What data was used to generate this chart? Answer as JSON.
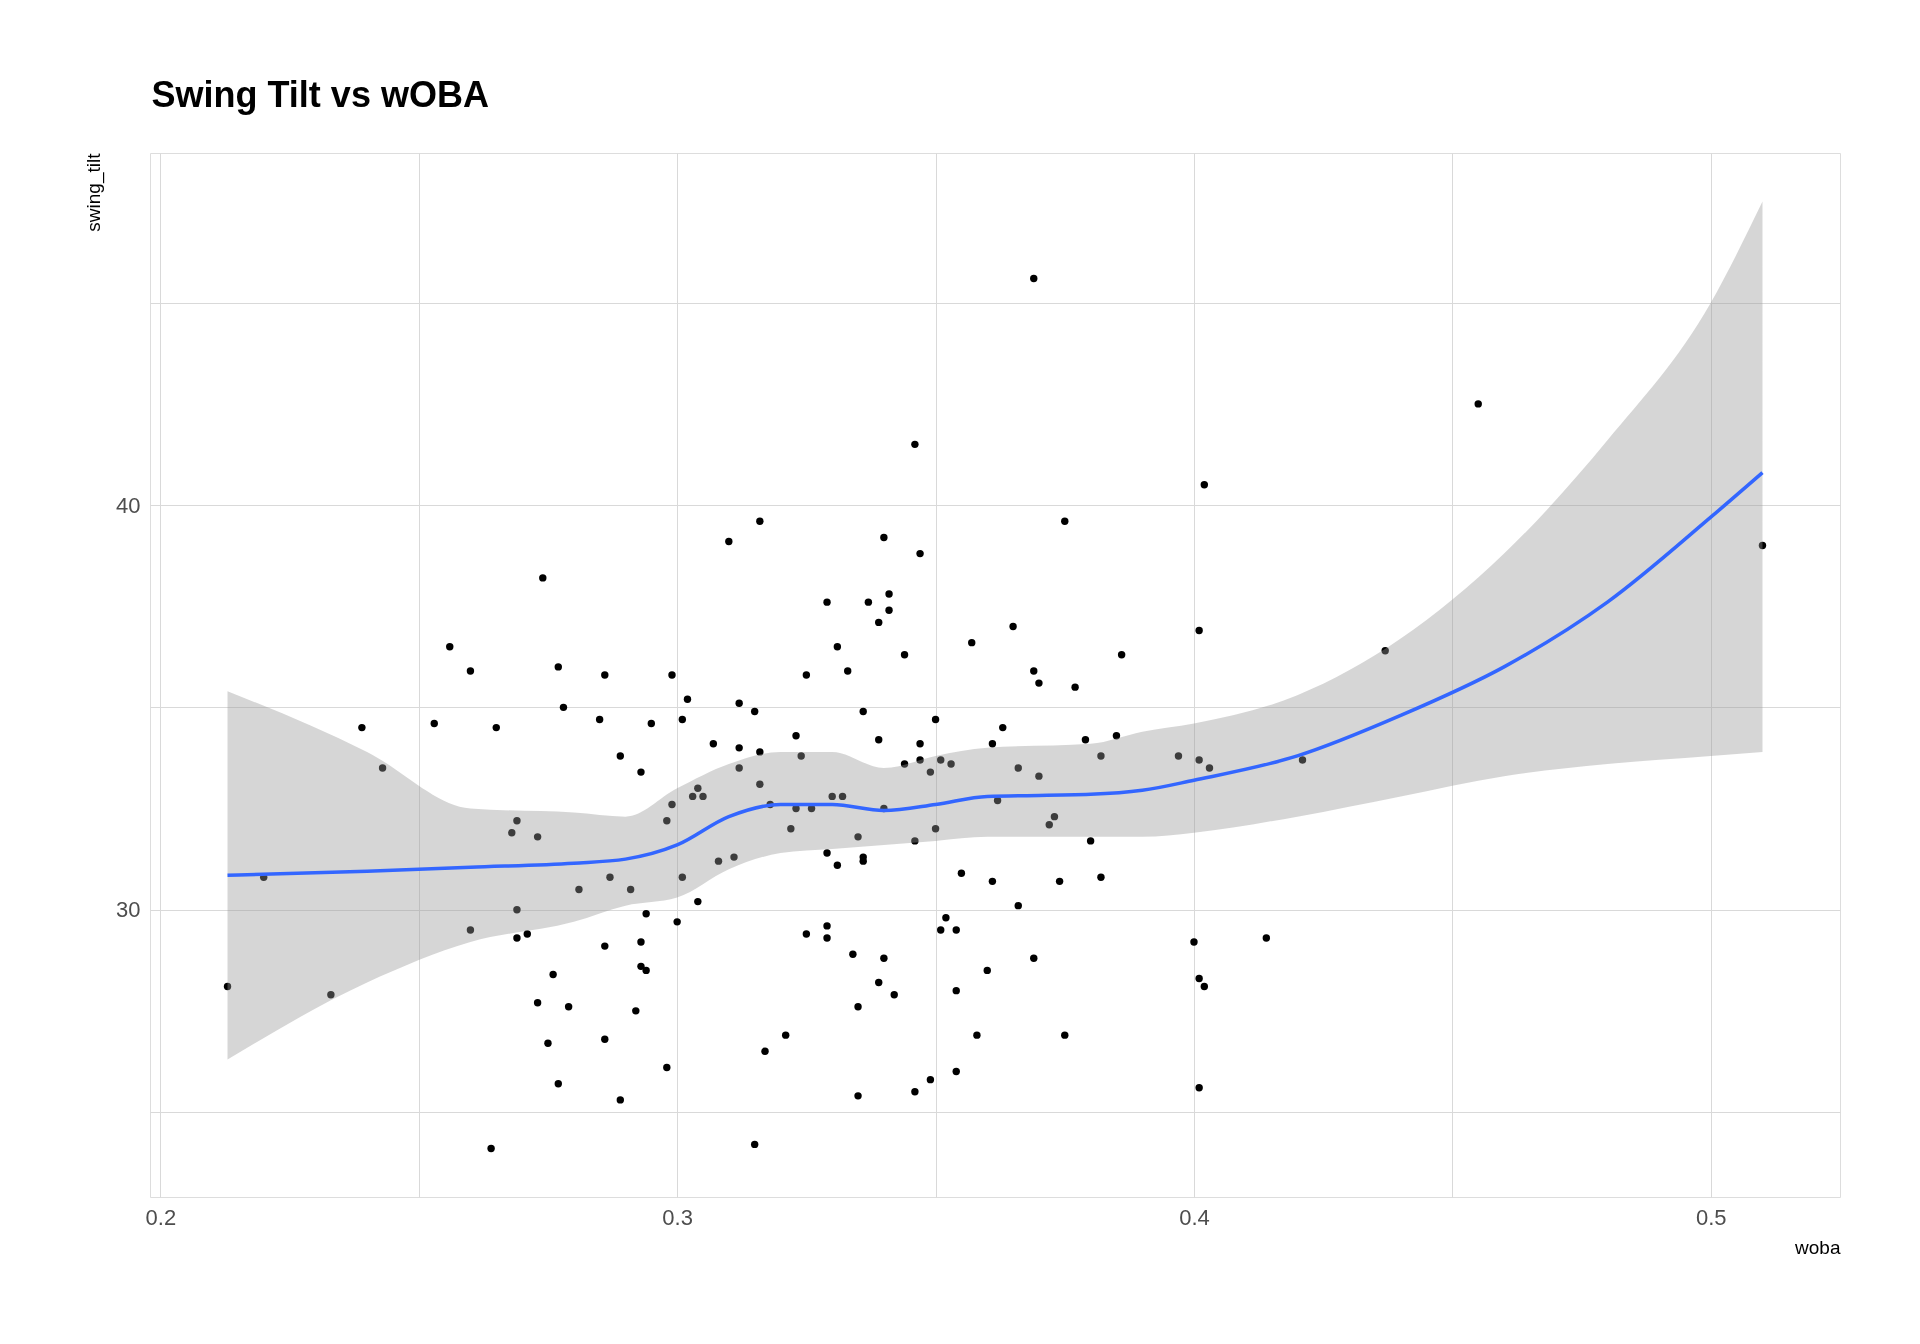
{
  "chart_data": {
    "type": "scatter",
    "title": "Swing Tilt vs wOBA",
    "xlabel": "woba",
    "ylabel": "swing_tilt",
    "xlim": [
      0.198,
      0.525
    ],
    "ylim": [
      22.9,
      48.7
    ],
    "xticks": [
      0.2,
      {
        "value": 0.25,
        "label": null
      },
      0.3,
      {
        "value": 0.35,
        "label": null
      },
      0.4,
      {
        "value": 0.45,
        "label": null
      },
      0.5
    ],
    "yticks": [
      {
        "value": 25,
        "label": null
      },
      30,
      {
        "value": 35,
        "label": null
      },
      40,
      {
        "value": 45,
        "label": null
      }
    ],
    "grid": true,
    "series": [
      {
        "marker": "circle",
        "color": "#000000",
        "x": [
          0.213,
          0.22,
          0.233,
          0.239,
          0.243,
          0.253,
          0.256,
          0.26,
          0.26,
          0.264,
          0.265,
          0.268,
          0.269,
          0.269,
          0.269,
          0.271,
          0.273,
          0.273,
          0.274,
          0.275,
          0.276,
          0.277,
          0.277,
          0.278,
          0.279,
          0.281,
          0.285,
          0.286,
          0.286,
          0.286,
          0.287,
          0.289,
          0.289,
          0.291,
          0.292,
          0.293,
          0.293,
          0.293,
          0.294,
          0.294,
          0.295,
          0.298,
          0.298,
          0.299,
          0.299,
          0.3,
          0.301,
          0.301,
          0.302,
          0.303,
          0.304,
          0.304,
          0.305,
          0.307,
          0.308,
          0.31,
          0.311,
          0.312,
          0.312,
          0.312,
          0.315,
          0.315,
          0.316,
          0.316,
          0.316,
          0.317,
          0.318,
          0.321,
          0.322,
          0.323,
          0.323,
          0.324,
          0.325,
          0.325,
          0.326,
          0.329,
          0.329,
          0.329,
          0.329,
          0.33,
          0.331,
          0.331,
          0.332,
          0.333,
          0.334,
          0.335,
          0.335,
          0.335,
          0.336,
          0.336,
          0.336,
          0.337,
          0.339,
          0.339,
          0.339,
          0.34,
          0.34,
          0.34,
          0.341,
          0.341,
          0.342,
          0.344,
          0.344,
          0.346,
          0.346,
          0.346,
          0.347,
          0.347,
          0.347,
          0.349,
          0.349,
          0.35,
          0.35,
          0.351,
          0.351,
          0.352,
          0.353,
          0.354,
          0.354,
          0.354,
          0.355,
          0.357,
          0.358,
          0.36,
          0.361,
          0.361,
          0.362,
          0.363,
          0.365,
          0.366,
          0.366,
          0.369,
          0.369,
          0.369,
          0.37,
          0.37,
          0.372,
          0.373,
          0.374,
          0.375,
          0.375,
          0.377,
          0.379,
          0.38,
          0.382,
          0.382,
          0.385,
          0.386,
          0.397,
          0.4,
          0.401,
          0.401,
          0.401,
          0.401,
          0.402,
          0.402,
          0.403,
          0.414,
          0.421,
          0.437,
          0.455,
          0.51
        ],
        "values": [
          28.1,
          30.8,
          27.9,
          34.5,
          33.5,
          34.6,
          36.5,
          35.9,
          29.5,
          24.1,
          34.5,
          31.9,
          32.2,
          30.0,
          29.3,
          29.4,
          31.8,
          27.7,
          38.2,
          26.7,
          28.4,
          36.0,
          25.7,
          35.0,
          27.6,
          30.5,
          34.7,
          35.8,
          29.1,
          26.8,
          30.8,
          25.3,
          33.8,
          30.5,
          27.5,
          33.4,
          29.2,
          28.6,
          28.5,
          29.9,
          34.6,
          26.1,
          32.2,
          35.8,
          32.6,
          29.7,
          30.8,
          34.7,
          35.2,
          32.8,
          33.0,
          30.2,
          32.8,
          34.1,
          31.2,
          39.1,
          31.3,
          35.1,
          34.0,
          33.5,
          34.9,
          24.2,
          39.6,
          33.9,
          33.1,
          26.5,
          32.6,
          26.9,
          32.0,
          34.3,
          32.5,
          33.8,
          29.4,
          35.8,
          32.5,
          31.4,
          29.6,
          29.3,
          37.6,
          32.8,
          31.1,
          36.5,
          32.8,
          35.9,
          28.9,
          25.4,
          27.6,
          31.8,
          34.9,
          31.3,
          31.2,
          37.6,
          37.1,
          34.2,
          28.2,
          39.2,
          32.5,
          28.8,
          37.4,
          37.8,
          27.9,
          36.3,
          33.6,
          31.7,
          25.5,
          41.5,
          38.8,
          34.1,
          33.7,
          33.4,
          25.8,
          34.7,
          32.0,
          33.7,
          29.5,
          29.8,
          33.6,
          26.0,
          29.5,
          28.0,
          30.9,
          36.6,
          26.9,
          28.5,
          34.1,
          30.7,
          32.7,
          34.5,
          37.0,
          33.5,
          30.1,
          45.6,
          35.9,
          28.8,
          35.6,
          33.3,
          32.1,
          32.3,
          30.7,
          39.6,
          26.9,
          35.5,
          34.2,
          31.7,
          33.8,
          30.8,
          34.3,
          36.3,
          33.8,
          29.2,
          36.9,
          33.7,
          28.3,
          25.6,
          28.1,
          40.5,
          33.5,
          29.3,
          33.7,
          36.4,
          42.5,
          39.0
        ]
      },
      {
        "type": "line",
        "color": "#3366ff",
        "x": [
          0.213,
          0.24,
          0.26,
          0.28,
          0.29,
          0.3,
          0.31,
          0.32,
          0.33,
          0.34,
          0.35,
          0.36,
          0.38,
          0.39,
          0.4,
          0.42,
          0.44,
          0.46,
          0.48,
          0.5,
          0.51
        ],
        "values": [
          30.85,
          30.95,
          31.05,
          31.15,
          31.25,
          31.6,
          32.3,
          32.6,
          32.6,
          32.45,
          32.6,
          32.8,
          32.85,
          32.95,
          33.2,
          33.8,
          34.8,
          36.0,
          37.6,
          39.7,
          40.8
        ],
        "lower": [
          26.3,
          28.2,
          29.2,
          29.7,
          30.1,
          30.3,
          31.0,
          31.4,
          31.5,
          31.6,
          31.7,
          31.8,
          31.8,
          31.8,
          31.9,
          32.3,
          32.8,
          33.3,
          33.6,
          33.8,
          33.9
        ],
        "upper": [
          35.4,
          33.9,
          32.5,
          32.4,
          32.3,
          33.0,
          33.6,
          33.9,
          33.9,
          33.5,
          33.8,
          34.0,
          34.1,
          34.4,
          34.6,
          35.3,
          36.7,
          38.8,
          41.6,
          45.0,
          47.5
        ]
      }
    ]
  }
}
